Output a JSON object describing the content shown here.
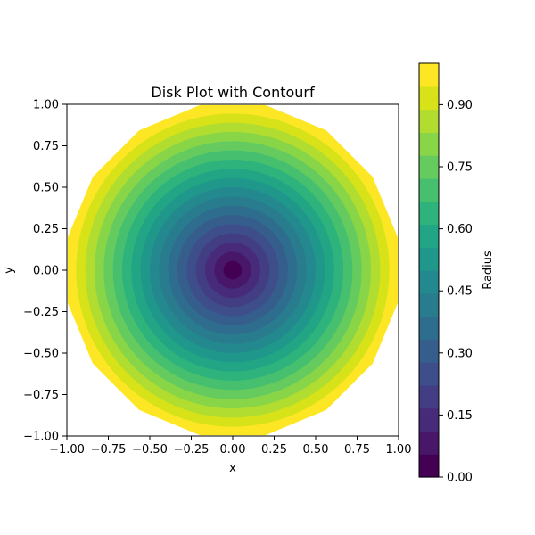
{
  "chart_data": {
    "type": "contourf",
    "title": "Disk Plot with Contourf",
    "xlabel": "x",
    "ylabel": "y",
    "xlim": [
      -1.0,
      1.0
    ],
    "ylim": [
      -1.0,
      1.0
    ],
    "x_ticks": [
      "−1.00",
      "−0.75",
      "−0.50",
      "−0.25",
      "0.00",
      "0.25",
      "0.50",
      "0.75",
      "1.00"
    ],
    "y_ticks": [
      "1.00",
      "0.75",
      "0.50",
      "0.25",
      "0.00",
      "−0.25",
      "−0.50",
      "−0.75",
      "−1.00"
    ],
    "colorbar": {
      "label": "Radius",
      "range": [
        0.0,
        1.0
      ],
      "ticks": [
        "0.00",
        "0.15",
        "0.30",
        "0.45",
        "0.60",
        "0.75",
        "0.90"
      ],
      "colors": [
        "#440154",
        "#481769",
        "#472a7a",
        "#433d84",
        "#3d4e8a",
        "#355e8d",
        "#2e6d8e",
        "#297b8e",
        "#23898e",
        "#1f978b",
        "#21a585",
        "#2eb37c",
        "#46c06f",
        "#65cb5e",
        "#89d548",
        "#b0dd2f",
        "#d8e219",
        "#fde725"
      ]
    },
    "data_description": "Filled contours of radius r = sqrt(x^2 + y^2) on the unit disk, 18 levels from 0.00 to 1.00"
  }
}
